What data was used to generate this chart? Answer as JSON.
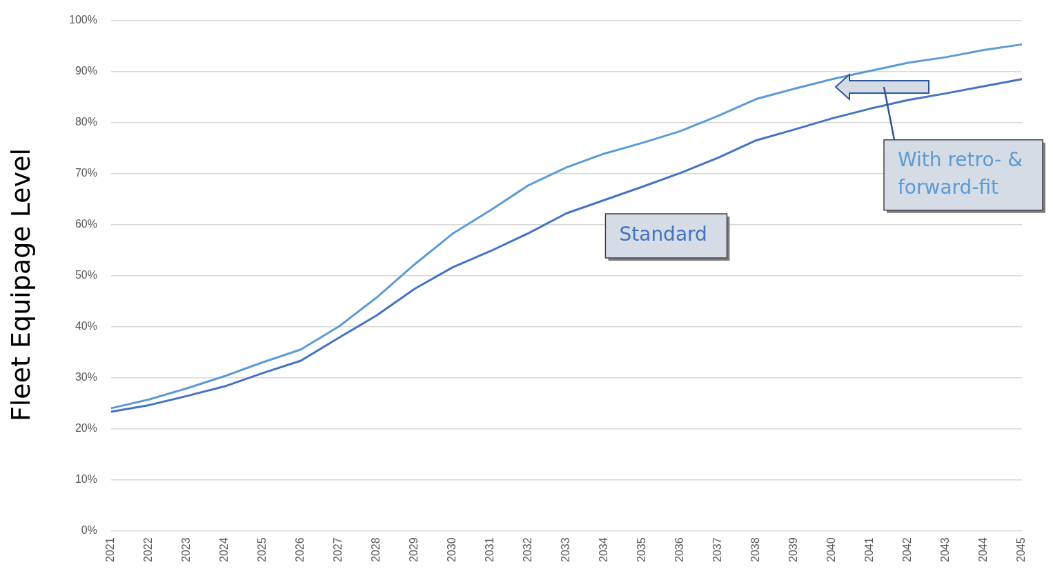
{
  "chart_data": {
    "type": "line",
    "ylabel": "Fleet Equipage Level",
    "categories": [
      "2021",
      "2022",
      "2023",
      "2024",
      "2025",
      "2026",
      "2027",
      "2028",
      "2029",
      "2030",
      "2031",
      "2032",
      "2033",
      "2034",
      "2035",
      "2036",
      "2037",
      "2038",
      "2039",
      "2040",
      "2041",
      "2042",
      "2043",
      "2044",
      "2045"
    ],
    "series": [
      {
        "name": "With retro- & forward-fit",
        "color": "#5b9bd5",
        "values": [
          24.0,
          25.7,
          27.9,
          30.3,
          33.0,
          35.5,
          40.0,
          45.7,
          52.2,
          58.2,
          62.8,
          67.7,
          71.2,
          73.9,
          76.0,
          78.3,
          81.3,
          84.6,
          86.6,
          88.5,
          90.1,
          91.7,
          92.8,
          94.2,
          95.3
        ]
      },
      {
        "name": "Standard",
        "color": "#4472c4",
        "values": [
          23.3,
          24.6,
          26.4,
          28.3,
          30.9,
          33.3,
          37.8,
          42.2,
          47.4,
          51.6,
          54.8,
          58.3,
          62.2,
          64.8,
          67.4,
          70.1,
          73.1,
          76.5,
          78.6,
          80.8,
          82.7,
          84.4,
          85.7,
          87.1,
          88.5
        ]
      }
    ],
    "ylim": [
      0,
      100
    ],
    "yticks": [
      {
        "value": 0,
        "label": "0%"
      },
      {
        "value": 10,
        "label": "10%"
      },
      {
        "value": 20,
        "label": "20%"
      },
      {
        "value": 30,
        "label": "30%"
      },
      {
        "value": 40,
        "label": "40%"
      },
      {
        "value": 50,
        "label": "50%"
      },
      {
        "value": 60,
        "label": "60%"
      },
      {
        "value": 70,
        "label": "70%"
      },
      {
        "value": 80,
        "label": "80%"
      },
      {
        "value": 90,
        "label": "90%"
      },
      {
        "value": 100,
        "label": "100%"
      }
    ],
    "grid": "y",
    "legend": false,
    "marker": "none",
    "line_style": "solid"
  }
}
